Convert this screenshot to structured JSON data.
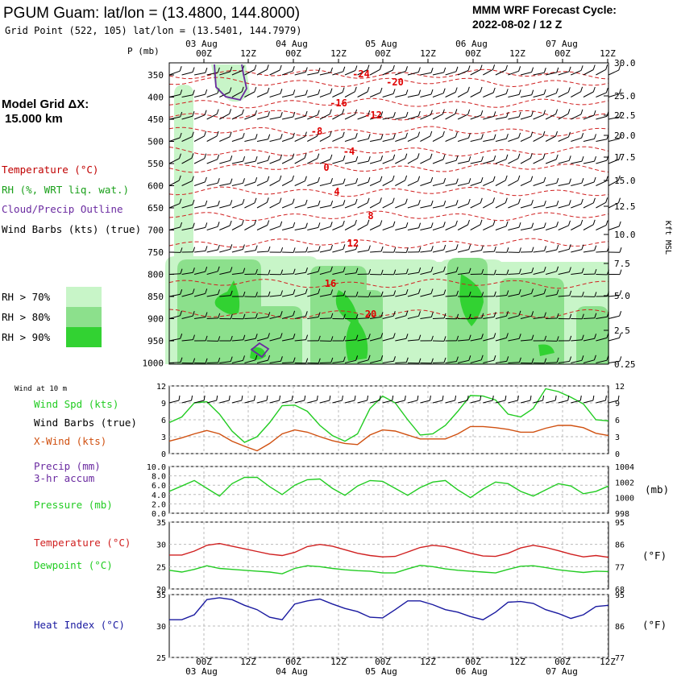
{
  "header": {
    "title": "PGUM Guam:  lat/lon = (13.4800, 144.8000)",
    "grid_point": "Grid Point (522, 105) lat/lon = (13.5401, 144.7979)",
    "cycle_label": "MMM WRF Forecast Cycle:",
    "cycle_value": "2022-08-02 / 12  Z"
  },
  "left_panel": {
    "model_grid_label": "Model Grid ΔX:",
    "model_grid_value": "15.000 km",
    "legend": [
      {
        "label": "Temperature (°C)",
        "color": "#c00000"
      },
      {
        "label": "RH (%, WRT liq. wat.)",
        "color": "#1aa01a"
      },
      {
        "label": "Cloud/Precip Outline",
        "color": "#6a2aa0"
      },
      {
        "label": "Wind Barbs (kts) (true)",
        "color": "#000000"
      }
    ],
    "rh_scale": [
      {
        "label": "RH > 70%",
        "color": "#c8f5c8"
      },
      {
        "label": "RH > 80%",
        "color": "#8ce08c"
      },
      {
        "label": "RH > 90%",
        "color": "#32d232"
      }
    ]
  },
  "time_axis": {
    "top_hours": [
      "00Z",
      "12Z",
      "00Z",
      "12Z",
      "00Z",
      "12Z",
      "00Z",
      "12Z",
      "00Z",
      "12Z"
    ],
    "dates": [
      "03 Aug",
      "04 Aug",
      "05 Aug",
      "06 Aug",
      "07 Aug"
    ]
  },
  "chart_data": [
    {
      "type": "heatmap",
      "name": "cross-section",
      "ylabel_left": "P (mb)",
      "ylabel_right": "Kft MSL",
      "y_left_ticks": [
        "350",
        "400",
        "450",
        "500",
        "550",
        "600",
        "650",
        "700",
        "750",
        "800",
        "850",
        "900",
        "950",
        "1000"
      ],
      "y_right_ticks": [
        "30.0",
        "25.0",
        "22.5",
        "20.0",
        "17.5",
        "15.0",
        "12.5",
        "10.0",
        "7.5",
        "5.0",
        "2.5",
        "0.25"
      ],
      "temperature_contour_labels": [
        "-24",
        "-20",
        "-16",
        "-12",
        "-8",
        "-4",
        "0",
        "4",
        "8",
        "12",
        "16",
        "20"
      ]
    },
    {
      "type": "line",
      "name": "surface-wind",
      "panel_label": "Wind at 10 m",
      "legend": [
        {
          "label": "Wind Spd (kts)",
          "color": "#22cc22"
        },
        {
          "label": "Wind Barbs (true)",
          "color": "#000000"
        },
        {
          "label": "X-Wind (kts)",
          "color": "#d05010"
        }
      ],
      "y_ticks": [
        "12",
        "9",
        "6",
        "3",
        "0"
      ],
      "ylim": [
        0,
        12
      ],
      "series": [
        {
          "name": "Wind Spd (kts)",
          "color": "#22cc22",
          "values": [
            5.5,
            6.5,
            9,
            9.2,
            7,
            4,
            2,
            3,
            5.5,
            8.5,
            8.6,
            7.5,
            5,
            3.2,
            2.2,
            3.5,
            8,
            10.2,
            9,
            6,
            3.3,
            3.5,
            5,
            7.5,
            10.3,
            10.2,
            9.5,
            7,
            6.5,
            8,
            11.5,
            11,
            10,
            8.8,
            6,
            5.8
          ]
        },
        {
          "name": "X-Wind (kts)",
          "color": "#d05010",
          "values": [
            2.2,
            2.8,
            3.5,
            4.1,
            3.5,
            2.2,
            1.3,
            0.5,
            1.8,
            3.5,
            4.2,
            3.8,
            3,
            2.3,
            1.8,
            1.6,
            3.3,
            4.2,
            4,
            3.3,
            2.6,
            2.6,
            2.6,
            3.5,
            4.8,
            4.8,
            4.6,
            4.3,
            3.8,
            3.8,
            4.5,
            5,
            5,
            4.6,
            3.6,
            3.2
          ]
        }
      ]
    },
    {
      "type": "line",
      "name": "precip-pressure",
      "legend": [
        {
          "label": "Precip (mm)",
          "color": "#6a2aa0"
        },
        {
          "label": "3-hr accum",
          "color": "#6a2aa0"
        },
        {
          "label": "Pressure (mb)",
          "color": "#22cc22"
        }
      ],
      "y_left_ticks": [
        "10.0",
        "8.0",
        "6.0",
        "4.0",
        "2.0",
        "0.0"
      ],
      "y_right_ticks": [
        "1004",
        "1002",
        "1000",
        "998"
      ],
      "ylabel_right": "(mb)",
      "ylim_left": [
        0,
        10
      ],
      "ylim_right": [
        998,
        1004
      ],
      "series": [
        {
          "name": "Pressure (mb)",
          "color": "#22cc22",
          "values": [
            1000.8,
            1001.5,
            1002.2,
            1001.2,
            1000.2,
            1001.8,
            1002.6,
            1002.6,
            1001.4,
            1000.4,
            1001.6,
            1002.3,
            1002.4,
            1001.2,
            1000.3,
            1001.5,
            1002.2,
            1002.1,
            1001.2,
            1000.3,
            1001.3,
            1002,
            1002.2,
            1001,
            1000,
            1001.1,
            1002,
            1001.8,
            1000.8,
            1000.2,
            1001,
            1001.8,
            1001.5,
            1000.5,
            1000.8,
            1001.5
          ]
        }
      ]
    },
    {
      "type": "line",
      "name": "temperature-dewpoint",
      "legend": [
        {
          "label": "Temperature (°C)",
          "color": "#d02020"
        },
        {
          "label": "Dewpoint (°C)",
          "color": "#22cc22"
        }
      ],
      "y_left_ticks": [
        "35",
        "30",
        "25",
        "20"
      ],
      "y_right_ticks": [
        "95",
        "86",
        "77",
        "68"
      ],
      "ylabel_right": "(°F)",
      "ylim": [
        20,
        35
      ],
      "series": [
        {
          "name": "Temperature (°C)",
          "color": "#d02020",
          "values": [
            27.6,
            27.6,
            28.5,
            29.8,
            30.2,
            29.6,
            29,
            28.4,
            27.8,
            27.5,
            28.2,
            29.5,
            30,
            29.6,
            28.8,
            28,
            27.5,
            27.2,
            27.3,
            28.3,
            29.3,
            29.8,
            29.5,
            28.8,
            28,
            27.4,
            27.3,
            28,
            29.2,
            29.8,
            29.3,
            28.6,
            27.8,
            27.2,
            27.5,
            27.1
          ]
        },
        {
          "name": "Dewpoint (°C)",
          "color": "#22cc22",
          "values": [
            24.2,
            23.8,
            24.4,
            25.2,
            24.6,
            24.4,
            24.2,
            24,
            23.8,
            23.4,
            24.6,
            25.2,
            25,
            24.6,
            24.3,
            24.1,
            24,
            23.6,
            23.6,
            24.5,
            25.3,
            25,
            24.5,
            24.2,
            24,
            23.8,
            23.6,
            24.4,
            25.1,
            25.2,
            24.8,
            24.3,
            24,
            23.7,
            24,
            23.9
          ]
        }
      ]
    },
    {
      "type": "line",
      "name": "heat-index",
      "legend": [
        {
          "label": "Heat Index (°C)",
          "color": "#1a1aa0"
        }
      ],
      "y_left_ticks": [
        "35",
        "30",
        "25"
      ],
      "y_right_ticks": [
        "95",
        "86",
        "77"
      ],
      "ylabel_right": "(°F)",
      "ylim": [
        25,
        35
      ],
      "series": [
        {
          "name": "Heat Index (°C)",
          "color": "#1a1aa0",
          "values": [
            31,
            31,
            31.8,
            34.2,
            34.5,
            34.2,
            33.3,
            32.6,
            31.4,
            31,
            33.5,
            34,
            34.3,
            33.5,
            32.8,
            32.3,
            31.4,
            31.3,
            32.6,
            34,
            34,
            33.4,
            32.6,
            32.2,
            31.5,
            31,
            32.2,
            33.8,
            33.9,
            33.6,
            32.6,
            32,
            31.2,
            31.8,
            33.1,
            33.3
          ]
        }
      ]
    }
  ]
}
